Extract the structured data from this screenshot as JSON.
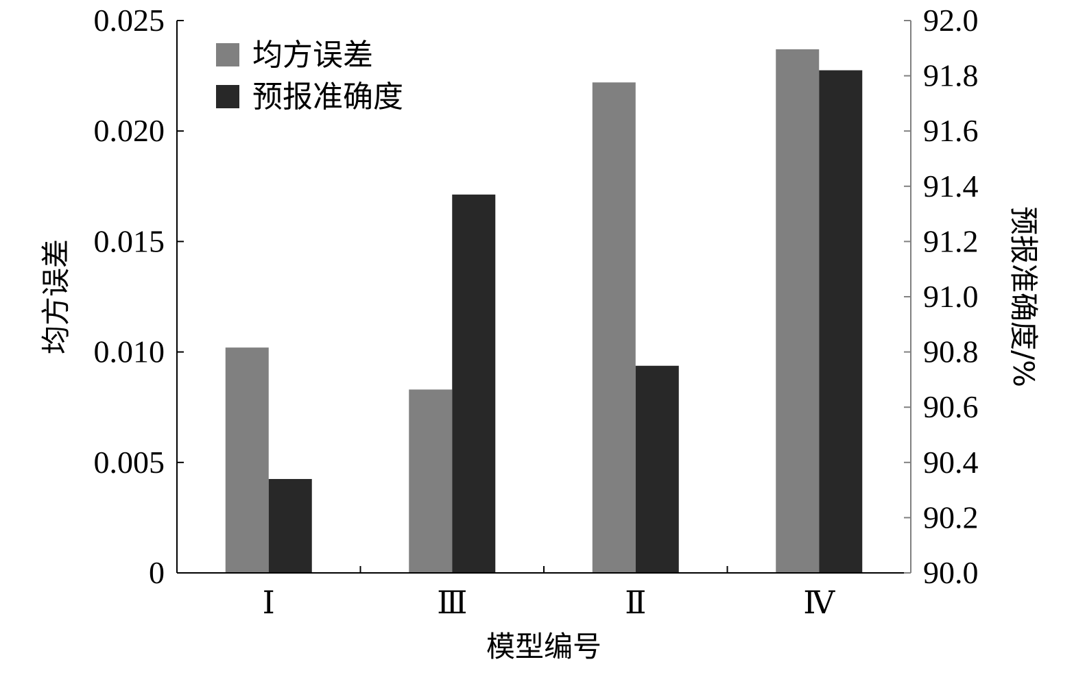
{
  "chart_data": {
    "type": "bar",
    "categories": [
      "Ⅰ",
      "Ⅲ",
      "Ⅱ",
      "Ⅳ"
    ],
    "series": [
      {
        "name": "均方误差",
        "axis": "left",
        "color": "#808080",
        "values": [
          0.0102,
          0.0083,
          0.0222,
          0.0237
        ]
      },
      {
        "name": "预报准确度",
        "axis": "right",
        "color": "#282828",
        "values": [
          90.34,
          91.37,
          90.75,
          91.82
        ]
      }
    ],
    "xlabel": "模型编号",
    "ylabel": "均方误差",
    "ylabel_right": "预报准确度/%",
    "ylim": [
      0,
      0.025
    ],
    "ylim_right": [
      90.0,
      92.0
    ],
    "yticks": [
      "0",
      "0.005",
      "0.010",
      "0.015",
      "0.020",
      "0.025"
    ],
    "yticks_right": [
      "90.0",
      "90.2",
      "90.4",
      "90.6",
      "90.8",
      "91.0",
      "91.2",
      "91.4",
      "91.6",
      "91.8",
      "92.0"
    ],
    "grid": false,
    "legend_position": "top-left"
  }
}
